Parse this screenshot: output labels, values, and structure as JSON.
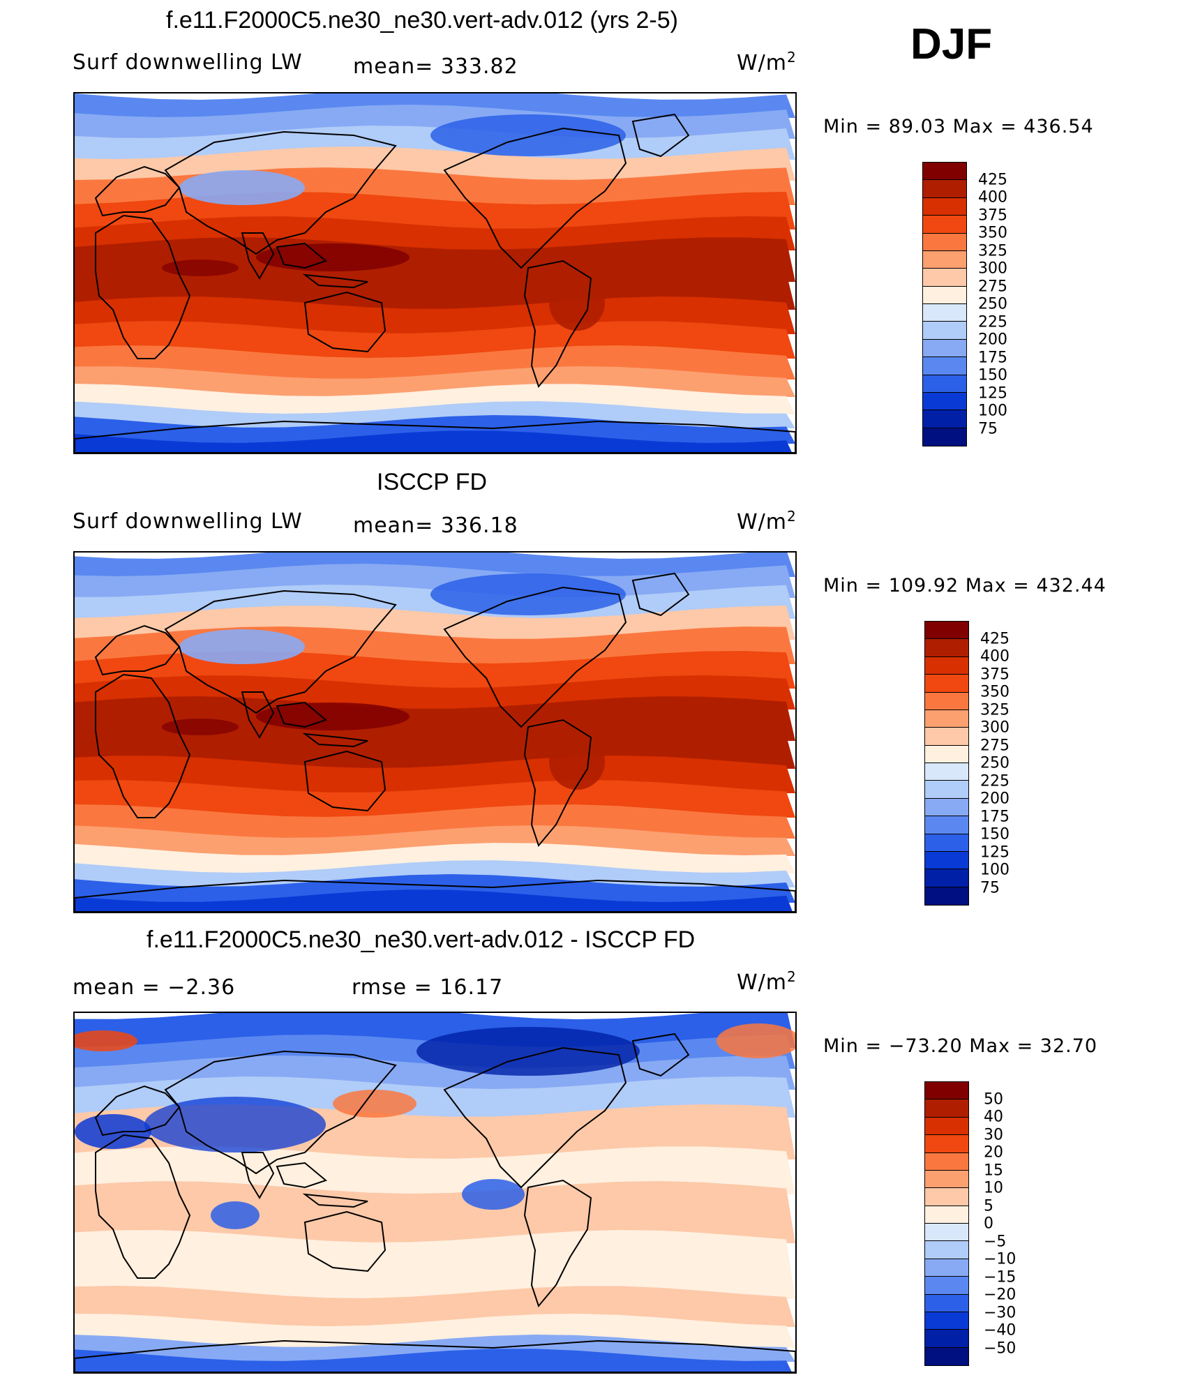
{
  "season": "DJF",
  "panels": [
    {
      "title": "f.e11.F2000C5.ne30_ne30.vert-adv.012 (yrs 2-5)",
      "left_label": "Surf downwelling LW",
      "center_label": "mean=  333.82",
      "units_label": "W/m",
      "units_sup": "2",
      "minmax": "Min =   89.03 Max = 436.54",
      "colorbar_levels": [
        "425",
        "400",
        "375",
        "350",
        "325",
        "300",
        "275",
        "250",
        "225",
        "200",
        "175",
        "150",
        "125",
        "100",
        "75"
      ],
      "colorbar_colors": [
        "#800000",
        "#b01e00",
        "#d83000",
        "#f04810",
        "#fa7840",
        "#fca070",
        "#fdc9a8",
        "#fff0e0",
        "#d8e8fa",
        "#b0ccf8",
        "#88aaf4",
        "#5a88f0",
        "#2c60e8",
        "#0a3ad6",
        "#0020a8",
        "#001080"
      ]
    },
    {
      "title": "ISCCP FD",
      "left_label": "Surf downwelling LW",
      "center_label": "mean=  336.18",
      "units_label": "W/m",
      "units_sup": "2",
      "minmax": "Min = 109.92 Max = 432.44",
      "colorbar_levels": [
        "425",
        "400",
        "375",
        "350",
        "325",
        "300",
        "275",
        "250",
        "225",
        "200",
        "175",
        "150",
        "125",
        "100",
        "75"
      ],
      "colorbar_colors": [
        "#800000",
        "#b01e00",
        "#d83000",
        "#f04810",
        "#fa7840",
        "#fca070",
        "#fdc9a8",
        "#fff0e0",
        "#d8e8fa",
        "#b0ccf8",
        "#88aaf4",
        "#5a88f0",
        "#2c60e8",
        "#0a3ad6",
        "#0020a8",
        "#001080"
      ]
    },
    {
      "title": "f.e11.F2000C5.ne30_ne30.vert-adv.012 - ISCCP FD",
      "left_label": "mean =    −2.36",
      "center_label": "rmse =    16.17",
      "units_label": "W/m",
      "units_sup": "2",
      "minmax": "Min = −73.20 Max =   32.70",
      "colorbar_levels": [
        "50",
        "40",
        "30",
        "20",
        "15",
        "10",
        "5",
        "0",
        "−5",
        "−10",
        "−15",
        "−20",
        "−30",
        "−40",
        "−50"
      ],
      "colorbar_colors": [
        "#800000",
        "#b01e00",
        "#d83000",
        "#f04810",
        "#fa7840",
        "#fca070",
        "#fdc9a8",
        "#fff0e0",
        "#d8e8fa",
        "#b0ccf8",
        "#88aaf4",
        "#5a88f0",
        "#2c60e8",
        "#0a3ad6",
        "#0020a8",
        "#001080"
      ]
    }
  ]
}
